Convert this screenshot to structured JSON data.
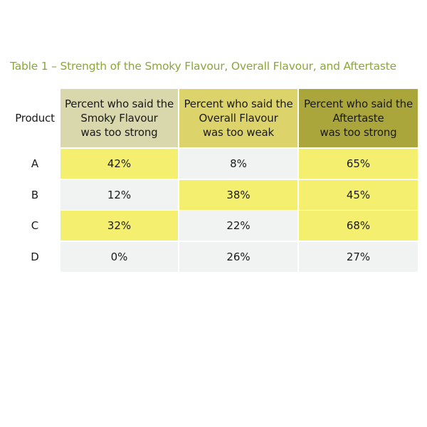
{
  "title": "Table 1 – Strength of the Smoky Flavour, Overall Flavour, and Aftertaste",
  "table": {
    "header": [
      [
        "Product"
      ],
      [
        "Percent who said the",
        "Smoky Flavour",
        "was too strong"
      ],
      [
        "Percent who said the",
        "Overall Flavour",
        "was too weak"
      ],
      [
        "Percent who said the",
        "Aftertaste",
        "was too strong"
      ]
    ],
    "rows": [
      [
        "A",
        "42%",
        "8%",
        "65%"
      ],
      [
        "B",
        "12%",
        "38%",
        "45%"
      ],
      [
        "C",
        "32%",
        "22%",
        "68%"
      ],
      [
        "D",
        "0%",
        "26%",
        "27%"
      ]
    ]
  }
}
